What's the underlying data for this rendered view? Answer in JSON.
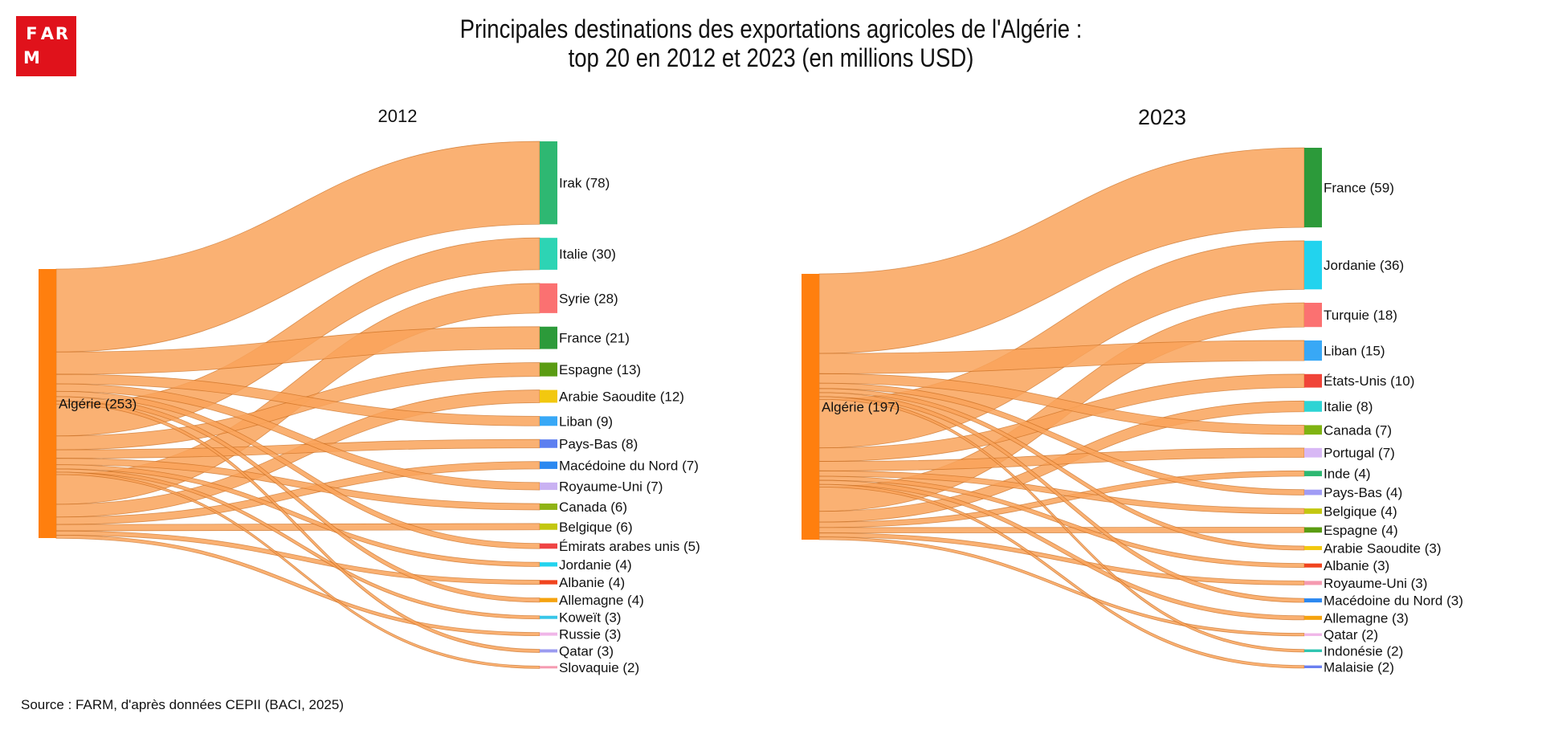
{
  "logo": {
    "letters": [
      "F",
      "A",
      "R",
      "M",
      "",
      ""
    ]
  },
  "title": {
    "line1": "Principales destinations des exportations agricoles de l'Algérie :",
    "line2": "top 20 en 2012 et 2023 (en millions USD)"
  },
  "source": "Source : FARM, d'après données CEPII (BACI, 2025)",
  "colors": {
    "source_node": "#ff7f0e",
    "link": "#f9a35a"
  },
  "chart_data": [
    {
      "type": "sankey",
      "title": "2012",
      "source": {
        "name": "Algérie",
        "value": 253
      },
      "targets": [
        {
          "name": "Irak",
          "value": 78,
          "color": "#2eb872"
        },
        {
          "name": "Italie",
          "value": 30,
          "color": "#2dd4b4"
        },
        {
          "name": "Syrie",
          "value": 28,
          "color": "#fb7171"
        },
        {
          "name": "France",
          "value": 21,
          "color": "#2c9a3a"
        },
        {
          "name": "Espagne",
          "value": 13,
          "color": "#5a9c12"
        },
        {
          "name": "Arabie Saoudite",
          "value": 12,
          "color": "#f2c80f"
        },
        {
          "name": "Liban",
          "value": 9,
          "color": "#38a8f6"
        },
        {
          "name": "Pays-Bas",
          "value": 8,
          "color": "#5d7ff0"
        },
        {
          "name": "Macédoine du Nord",
          "value": 7,
          "color": "#2b88f0"
        },
        {
          "name": "Royaume-Uni",
          "value": 7,
          "color": "#c9b1f2"
        },
        {
          "name": "Canada",
          "value": 6,
          "color": "#8fb315"
        },
        {
          "name": "Belgique",
          "value": 6,
          "color": "#c3c710"
        },
        {
          "name": "Émirats arabes unis",
          "value": 5,
          "color": "#ef4444"
        },
        {
          "name": "Jordanie",
          "value": 4,
          "color": "#22d3ee"
        },
        {
          "name": "Albanie",
          "value": 4,
          "color": "#f0441e"
        },
        {
          "name": "Allemagne",
          "value": 4,
          "color": "#f5a30f"
        },
        {
          "name": "Koweït",
          "value": 3,
          "color": "#38c6e8"
        },
        {
          "name": "Russie",
          "value": 3,
          "color": "#f0b6e8"
        },
        {
          "name": "Qatar",
          "value": 3,
          "color": "#9b9bf0"
        },
        {
          "name": "Slovaquie",
          "value": 2,
          "color": "#f59ab0"
        }
      ]
    },
    {
      "type": "sankey",
      "title": "2023",
      "source": {
        "name": "Algérie",
        "value": 197
      },
      "targets": [
        {
          "name": "France",
          "value": 59,
          "color": "#2c9a3a"
        },
        {
          "name": "Jordanie",
          "value": 36,
          "color": "#22d3ee"
        },
        {
          "name": "Turquie",
          "value": 18,
          "color": "#fb7171"
        },
        {
          "name": "Liban",
          "value": 15,
          "color": "#38a8f6"
        },
        {
          "name": "États-Unis",
          "value": 10,
          "color": "#f04438"
        },
        {
          "name": "Italie",
          "value": 8,
          "color": "#2dd4d4"
        },
        {
          "name": "Canada",
          "value": 7,
          "color": "#7fb312"
        },
        {
          "name": "Portugal",
          "value": 7,
          "color": "#d8b8f5"
        },
        {
          "name": "Inde",
          "value": 4,
          "color": "#2eb872"
        },
        {
          "name": "Pays-Bas",
          "value": 4,
          "color": "#a09cf5"
        },
        {
          "name": "Belgique",
          "value": 4,
          "color": "#c3c710"
        },
        {
          "name": "Espagne",
          "value": 4,
          "color": "#5a9c12"
        },
        {
          "name": "Arabie Saoudite",
          "value": 3,
          "color": "#f2c80f"
        },
        {
          "name": "Albanie",
          "value": 3,
          "color": "#f0441e"
        },
        {
          "name": "Royaume-Uni",
          "value": 3,
          "color": "#f59ab0"
        },
        {
          "name": "Macédoine du Nord",
          "value": 3,
          "color": "#2b88f0"
        },
        {
          "name": "Allemagne",
          "value": 3,
          "color": "#f5a30f"
        },
        {
          "name": "Qatar",
          "value": 2,
          "color": "#f0b6e8"
        },
        {
          "name": "Indonésie",
          "value": 2,
          "color": "#2ec4b0"
        },
        {
          "name": "Malaisie",
          "value": 2,
          "color": "#6a7ff0"
        }
      ]
    }
  ]
}
